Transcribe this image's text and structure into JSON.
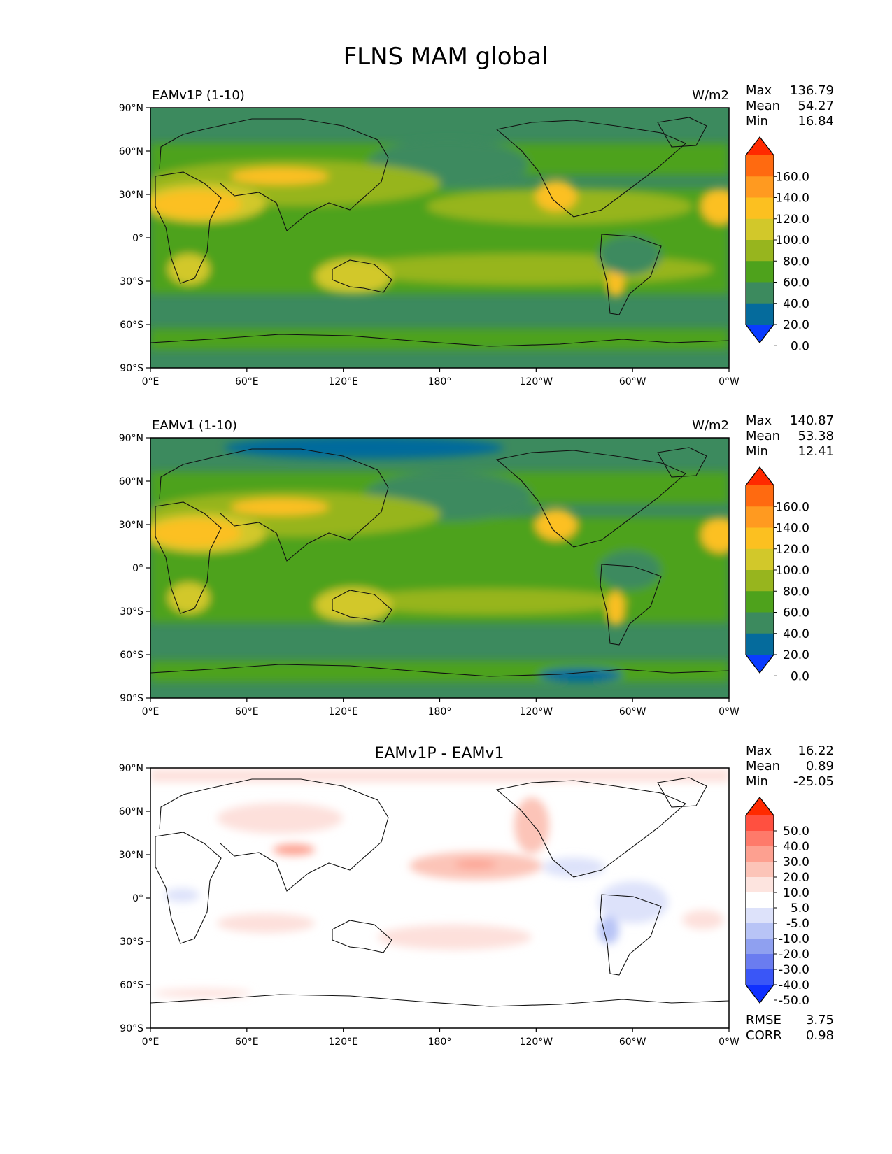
{
  "figure": {
    "title": "FLNS MAM global"
  },
  "map_axes": {
    "lat_ticks": [
      "90°N",
      "60°N",
      "30°N",
      "0°",
      "30°S",
      "60°S",
      "90°S"
    ],
    "lon_ticks": [
      "0°E",
      "60°E",
      "120°E",
      "180°",
      "120°W",
      "60°W",
      "0°W"
    ]
  },
  "chart_data": [
    {
      "type": "heatmap",
      "title": "EAMv1P (1-10)",
      "units": "W/m2",
      "stats": {
        "max_label": "Max",
        "max": "136.79",
        "mean_label": "Mean",
        "mean": "54.27",
        "min_label": "Min",
        "min": "16.84"
      },
      "colorbar": {
        "labels": [
          "160.0",
          "140.0",
          "120.0",
          "100.0",
          "80.0",
          "60.0",
          "40.0",
          "20.0",
          "0.0"
        ],
        "colors": [
          "#ff2a00",
          "#ff6a10",
          "#ff9a20",
          "#fcc020",
          "#d2c82a",
          "#97b51e",
          "#4ea21c",
          "#3c8a5e",
          "#056b9c",
          "#0a3cff"
        ]
      },
      "field_colors": {
        "ocean_base": "#3c8a5e",
        "mid": "#4ea21c",
        "warm": "#97b51e",
        "hot": "#d2c82a",
        "desert": "#fcc020",
        "max": "#ff9a20"
      }
    },
    {
      "type": "heatmap",
      "title": "EAMv1 (1-10)",
      "units": "W/m2",
      "stats": {
        "max_label": "Max",
        "max": "140.87",
        "mean_label": "Mean",
        "mean": "53.38",
        "min_label": "Min",
        "min": "12.41"
      },
      "colorbar": {
        "labels": [
          "160.0",
          "140.0",
          "120.0",
          "100.0",
          "80.0",
          "60.0",
          "40.0",
          "20.0",
          "0.0"
        ],
        "colors": [
          "#ff2a00",
          "#ff6a10",
          "#ff9a20",
          "#fcc020",
          "#d2c82a",
          "#97b51e",
          "#4ea21c",
          "#3c8a5e",
          "#056b9c",
          "#0a3cff"
        ]
      },
      "field_colors": {
        "ocean_base": "#3c8a5e",
        "mid": "#4ea21c",
        "warm": "#97b51e",
        "hot": "#d2c82a",
        "desert": "#fcc020",
        "max": "#ff9a20",
        "cold": "#056b9c"
      }
    },
    {
      "type": "heatmap",
      "title": "EAMv1P - EAMv1",
      "units": "",
      "stats": {
        "max_label": "Max",
        "max": "16.22",
        "mean_label": "Mean",
        "mean": "0.89",
        "min_label": "Min",
        "min": "-25.05"
      },
      "colorbar": {
        "labels": [
          "50.0",
          "40.0",
          "30.0",
          "20.0",
          "10.0",
          "5.0",
          "-5.0",
          "-10.0",
          "-20.0",
          "-30.0",
          "-40.0",
          "-50.0"
        ],
        "colors": [
          "#ff2a00",
          "#ff5040",
          "#fe7a6a",
          "#fda090",
          "#fcc4b8",
          "#fde4df",
          "#ffffff",
          "#dde2fa",
          "#b8c4f6",
          "#8fa0f0",
          "#6a7cf0",
          "#3a56f7",
          "#1030ff"
        ]
      },
      "field_colors": {
        "pos_light": "#fde0db",
        "pos": "#fcc4b8",
        "pos_strong": "#fda090",
        "neg_light": "#dde2fa",
        "neg": "#b8c4f6",
        "neg_strong": "#8fa0f0"
      },
      "metrics": {
        "rmse_label": "RMSE",
        "rmse": "3.75",
        "corr_label": "CORR",
        "corr": "0.98"
      }
    }
  ]
}
